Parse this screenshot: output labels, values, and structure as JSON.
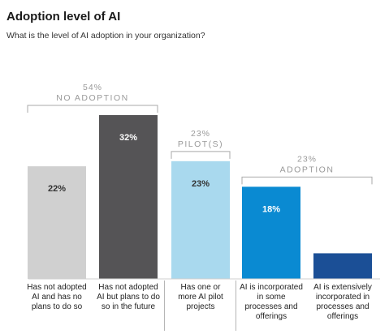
{
  "title": "Adoption level of AI",
  "subtitle": "What is the level of AI adoption in your organization?",
  "chart_data": {
    "type": "bar",
    "categories": [
      [
        "Has not adopted",
        "AI and has no",
        "plans to do so"
      ],
      [
        "Has not adopted",
        "AI but plans to do",
        "so in the future"
      ],
      [
        "Has one or",
        "more AI pilot",
        "projects"
      ],
      [
        "AI is incorporated",
        "in some",
        "processes and",
        "offerings"
      ],
      [
        "AI is extensively",
        "incorporated in",
        "processes and",
        "offerings"
      ]
    ],
    "values": [
      22,
      32,
      23,
      18,
      5
    ],
    "value_labels": [
      "22%",
      "32%",
      "23%",
      "18%",
      ""
    ],
    "colors": [
      "#d0d0d0",
      "#555456",
      "#a9d9ee",
      "#0a8ad2",
      "#1b4f96"
    ],
    "label_colors": [
      "#333333",
      "#ffffff",
      "#333333",
      "#ffffff",
      "#ffffff"
    ],
    "ylim": [
      0,
      32
    ],
    "groups": [
      {
        "pct": "54%",
        "name": "NO ADOPTION",
        "bars": [
          0,
          1
        ]
      },
      {
        "pct": "23%",
        "name": "PILOT(S)",
        "bars": [
          2,
          2
        ]
      },
      {
        "pct": "23%",
        "name": "ADOPTION",
        "bars": [
          3,
          4
        ]
      }
    ],
    "grid": false,
    "legend": "none"
  }
}
